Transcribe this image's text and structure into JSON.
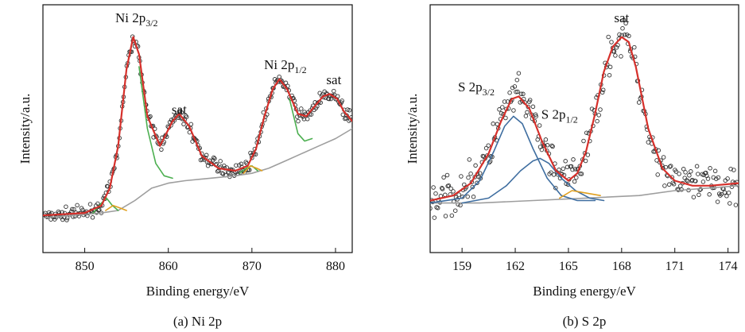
{
  "chart_data": [
    {
      "type": "line",
      "caption": "(a) Ni 2p",
      "xlabel": "Binding energy/eV",
      "ylabel": "Intensity/a.u.",
      "xlim": [
        845,
        882
      ],
      "ylim": [
        0,
        1
      ],
      "xticks": [
        850,
        860,
        870,
        880
      ],
      "yticks_shown": false,
      "annotations": [
        {
          "label": "Ni 2p",
          "sub": "3/2",
          "x": 856.2,
          "y": 0.93
        },
        {
          "label": "sat",
          "sub": "",
          "x": 861.3,
          "y": 0.56
        },
        {
          "label": "Ni 2p",
          "sub": "1/2",
          "x": 874.0,
          "y": 0.74
        },
        {
          "label": "sat",
          "sub": "",
          "x": 879.8,
          "y": 0.68
        }
      ],
      "series": [
        {
          "role": "background",
          "color": "#9e9e9e",
          "x": [
            845,
            852,
            854,
            856,
            858,
            860,
            862,
            865,
            868,
            870,
            872,
            874,
            876,
            878,
            880,
            882
          ],
          "y": [
            0.14,
            0.16,
            0.17,
            0.21,
            0.26,
            0.28,
            0.29,
            0.3,
            0.31,
            0.32,
            0.34,
            0.37,
            0.4,
            0.43,
            0.46,
            0.5
          ]
        },
        {
          "role": "fit-envelope",
          "color": "#d6302b",
          "x": [
            845,
            850,
            852,
            853,
            854,
            855,
            855.8,
            856.5,
            857.5,
            859,
            860.5,
            861.3,
            862.5,
            864,
            866,
            868,
            869.5,
            870.5,
            871.5,
            872.5,
            873.3,
            874.2,
            875.5,
            876.5,
            877.5,
            878.5,
            879.3,
            880.2,
            881,
            882
          ],
          "y": [
            0.15,
            0.16,
            0.19,
            0.26,
            0.43,
            0.74,
            0.87,
            0.8,
            0.55,
            0.43,
            0.53,
            0.56,
            0.51,
            0.39,
            0.34,
            0.33,
            0.35,
            0.42,
            0.55,
            0.66,
            0.7,
            0.66,
            0.56,
            0.55,
            0.59,
            0.63,
            0.64,
            0.62,
            0.57,
            0.53
          ]
        },
        {
          "role": "component",
          "color": "#4caf50",
          "x": [
            851,
            852,
            852.6,
            853.3,
            854
          ],
          "y": [
            0.16,
            0.2,
            0.22,
            0.19,
            0.17
          ]
        },
        {
          "role": "component",
          "color": "#e0a020",
          "x": [
            852.5,
            853.4,
            854.2,
            855
          ],
          "y": [
            0.17,
            0.19,
            0.18,
            0.17
          ]
        },
        {
          "role": "component",
          "color": "#4caf50",
          "x": [
            856.5,
            857.5,
            858.5,
            859.5,
            860.5
          ],
          "y": [
            0.75,
            0.5,
            0.36,
            0.31,
            0.3
          ]
        },
        {
          "role": "component",
          "color": "#4caf50",
          "x": [
            868.5,
            869.3,
            870,
            870.7
          ],
          "y": [
            0.32,
            0.34,
            0.35,
            0.33
          ]
        },
        {
          "role": "component",
          "color": "#e0a020",
          "x": [
            869,
            869.8,
            870.6,
            871.2
          ],
          "y": [
            0.32,
            0.35,
            0.34,
            0.33
          ]
        },
        {
          "role": "component",
          "color": "#4caf50",
          "x": [
            874.5,
            875.5,
            876.3,
            877.2
          ],
          "y": [
            0.62,
            0.48,
            0.45,
            0.46
          ]
        }
      ],
      "points_color": "#333333"
    },
    {
      "type": "line",
      "caption": "(b) S 2p",
      "xlabel": "Binding energy/eV",
      "ylabel": "Intensity/a.u.",
      "xlim": [
        157.2,
        174.6
      ],
      "ylim": [
        0,
        1
      ],
      "xticks": [
        159,
        162,
        165,
        168,
        171,
        174
      ],
      "yticks_shown": false,
      "annotations": [
        {
          "label": "S 2p",
          "sub": "3/2",
          "x": 159.8,
          "y": 0.65
        },
        {
          "label": "S 2p",
          "sub": "1/2",
          "x": 164.5,
          "y": 0.54
        },
        {
          "label": "sat",
          "sub": "",
          "x": 168.0,
          "y": 0.93
        }
      ],
      "series": [
        {
          "role": "background",
          "color": "#9e9e9e",
          "x": [
            157.2,
            160,
            163,
            166,
            169,
            171,
            174.6
          ],
          "y": [
            0.2,
            0.2,
            0.21,
            0.22,
            0.23,
            0.25,
            0.27
          ]
        },
        {
          "role": "fit-envelope",
          "color": "#d6302b",
          "x": [
            157.2,
            158.5,
            159.5,
            160.5,
            161.2,
            161.8,
            162.2,
            162.8,
            163.5,
            164.3,
            165,
            165.5,
            166,
            166.5,
            167,
            167.5,
            168,
            168.4,
            168.8,
            169.5,
            170.3,
            171,
            172,
            173,
            174.6
          ],
          "y": [
            0.21,
            0.23,
            0.28,
            0.4,
            0.53,
            0.62,
            0.63,
            0.58,
            0.45,
            0.33,
            0.29,
            0.32,
            0.41,
            0.56,
            0.73,
            0.83,
            0.87,
            0.85,
            0.75,
            0.5,
            0.34,
            0.29,
            0.27,
            0.27,
            0.28
          ]
        },
        {
          "role": "component",
          "color": "#3f6ea0",
          "x": [
            157.2,
            159,
            160,
            160.8,
            161.4,
            161.9,
            162.4,
            163,
            163.8,
            164.6,
            165.5,
            166.5
          ],
          "y": [
            0.2,
            0.22,
            0.29,
            0.41,
            0.51,
            0.55,
            0.52,
            0.42,
            0.3,
            0.23,
            0.21,
            0.21
          ]
        },
        {
          "role": "component",
          "color": "#3f6ea0",
          "x": [
            159,
            160.5,
            161.5,
            162.3,
            163,
            163.4,
            163.9,
            164.6,
            165.4,
            166.2,
            167
          ],
          "y": [
            0.2,
            0.22,
            0.27,
            0.33,
            0.37,
            0.38,
            0.36,
            0.3,
            0.25,
            0.22,
            0.21
          ]
        },
        {
          "role": "component",
          "color": "#e0a020",
          "x": [
            164.5,
            165.2,
            166,
            166.8
          ],
          "y": [
            0.22,
            0.25,
            0.24,
            0.23
          ]
        }
      ],
      "points_color": "#333333"
    }
  ]
}
